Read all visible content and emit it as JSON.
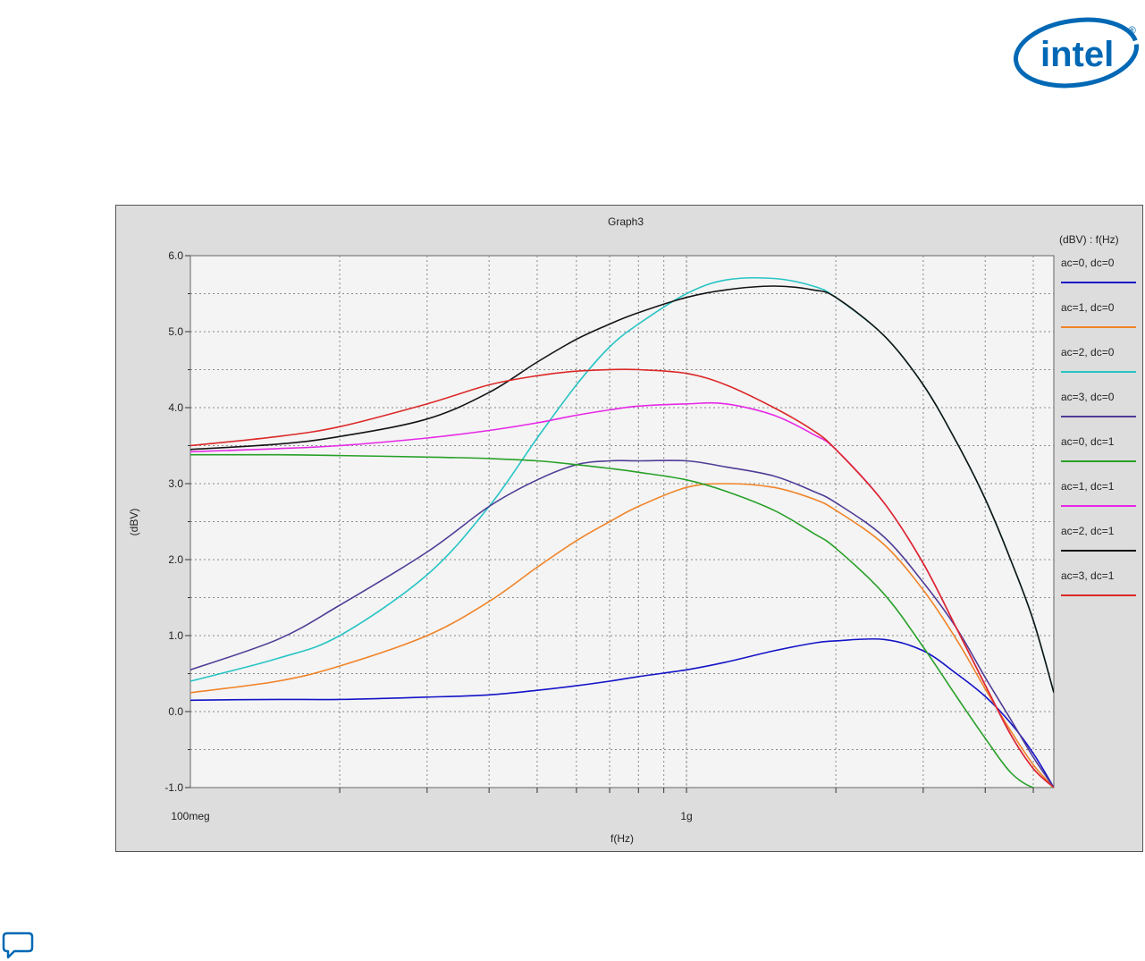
{
  "logo": {
    "icon": "intel-logo",
    "text": "intel",
    "mark": "®"
  },
  "feedback": {
    "icon": "comment-bubble-icon"
  },
  "colors": {
    "panel_bg": "#dddddd",
    "plot_bg": "#f4f4f4",
    "grid": "#888888"
  },
  "chart_data": {
    "type": "line",
    "title": "Graph3",
    "xlabel": "f(Hz)",
    "ylabel": "(dBV)",
    "legend_header": "(dBV) : f(Hz)",
    "legend_position": "right",
    "x_scale": "log",
    "xlim": [
      100000000,
      5500000000
    ],
    "ylim": [
      -1.0,
      6.0
    ],
    "grid": true,
    "x_tick_labels": [
      {
        "value": 100000000,
        "label": "100meg"
      },
      {
        "value": 1000000000,
        "label": "1g"
      }
    ],
    "y_tick_labels": [
      {
        "value": -1.0,
        "label": "-1.0"
      },
      {
        "value": 0.0,
        "label": "0.0"
      },
      {
        "value": 1.0,
        "label": "1.0"
      },
      {
        "value": 2.0,
        "label": "2.0"
      },
      {
        "value": 3.0,
        "label": "3.0"
      },
      {
        "value": 4.0,
        "label": "4.0"
      },
      {
        "value": 5.0,
        "label": "5.0"
      },
      {
        "value": 6.0,
        "label": "6.0"
      }
    ],
    "x": [
      100000000,
      150000000,
      200000000,
      300000000,
      400000000,
      500000000,
      600000000,
      700000000,
      800000000,
      1000000000,
      1200000000,
      1500000000,
      1800000000,
      2000000000,
      2500000000,
      3000000000,
      3500000000,
      4000000000,
      4500000000,
      5000000000,
      5500000000
    ],
    "series": [
      {
        "name": "ac=0, dc=0",
        "color": "#1414c8",
        "values": [
          0.15,
          0.16,
          0.16,
          0.19,
          0.22,
          0.28,
          0.34,
          0.4,
          0.46,
          0.55,
          0.65,
          0.8,
          0.9,
          0.93,
          0.95,
          0.8,
          0.5,
          0.2,
          -0.15,
          -0.55,
          -1.0
        ]
      },
      {
        "name": "ac=1, dc=0",
        "color": "#f08428",
        "values": [
          0.25,
          0.4,
          0.6,
          1.0,
          1.45,
          1.9,
          2.25,
          2.5,
          2.7,
          2.95,
          3.0,
          2.95,
          2.8,
          2.65,
          2.2,
          1.6,
          0.95,
          0.3,
          -0.25,
          -0.7,
          -1.0
        ]
      },
      {
        "name": "ac=2, dc=0",
        "color": "#28c4c4",
        "values": [
          0.4,
          0.7,
          1.0,
          1.8,
          2.7,
          3.6,
          4.3,
          4.8,
          5.1,
          5.5,
          5.68,
          5.7,
          5.6,
          5.45,
          4.95,
          4.3,
          3.55,
          2.8,
          2.0,
          1.2,
          0.25
        ]
      },
      {
        "name": "ac=3, dc=0",
        "color": "#503c96",
        "values": [
          0.55,
          0.95,
          1.4,
          2.1,
          2.7,
          3.05,
          3.25,
          3.3,
          3.3,
          3.3,
          3.22,
          3.1,
          2.9,
          2.75,
          2.3,
          1.7,
          1.1,
          0.45,
          -0.1,
          -0.6,
          -1.0
        ]
      },
      {
        "name": "ac=0, dc=1",
        "color": "#28a028",
        "values": [
          3.38,
          3.38,
          3.37,
          3.35,
          3.33,
          3.3,
          3.25,
          3.2,
          3.15,
          3.05,
          2.9,
          2.65,
          2.35,
          2.15,
          1.55,
          0.85,
          0.2,
          -0.35,
          -0.8,
          -1.0,
          -1.0
        ]
      },
      {
        "name": "ac=1, dc=1",
        "color": "#e628e6",
        "values": [
          3.42,
          3.46,
          3.5,
          3.6,
          3.7,
          3.8,
          3.9,
          3.97,
          4.02,
          4.05,
          4.05,
          3.9,
          3.65,
          3.45,
          2.75,
          1.95,
          1.1,
          0.35,
          -0.3,
          -0.75,
          -1.0
        ]
      },
      {
        "name": "ac=2, dc=1",
        "color": "#141414",
        "values": [
          3.45,
          3.52,
          3.62,
          3.85,
          4.2,
          4.6,
          4.9,
          5.1,
          5.25,
          5.45,
          5.55,
          5.6,
          5.55,
          5.45,
          4.95,
          4.3,
          3.55,
          2.8,
          2.0,
          1.2,
          0.25
        ]
      },
      {
        "name": "ac=3, dc=1",
        "color": "#dc2828",
        "values": [
          3.5,
          3.62,
          3.75,
          4.05,
          4.3,
          4.42,
          4.48,
          4.5,
          4.5,
          4.45,
          4.3,
          4.0,
          3.7,
          3.45,
          2.75,
          1.95,
          1.1,
          0.35,
          -0.3,
          -0.75,
          -1.0
        ]
      }
    ]
  }
}
